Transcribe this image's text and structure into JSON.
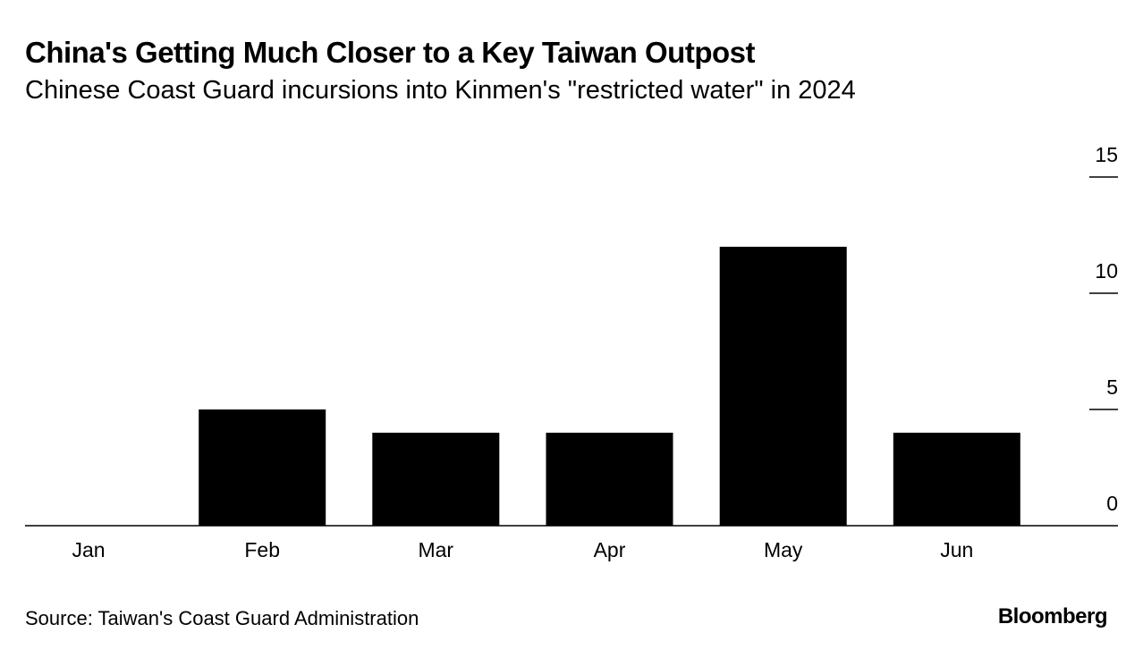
{
  "header": {
    "title": "China's Getting Much Closer to a Key Taiwan Outpost",
    "subtitle": "Chinese Coast Guard incursions into Kinmen's \"restricted water\" in 2024"
  },
  "footer": {
    "source": "Source: Taiwan's Coast Guard Administration",
    "brand": "Bloomberg"
  },
  "colors": {
    "bar": "#000000",
    "axis": "#000000",
    "background": "#ffffff"
  },
  "chart_data": {
    "type": "bar",
    "title": "China's Getting Much Closer to a Key Taiwan Outpost",
    "subtitle": "Chinese Coast Guard incursions into Kinmen's \"restricted water\" in 2024",
    "xlabel": "",
    "ylabel": "",
    "categories": [
      "Jan",
      "Feb",
      "Mar",
      "Apr",
      "May",
      "Jun"
    ],
    "values": [
      0,
      5,
      4,
      4,
      12,
      4
    ],
    "ylim": [
      0,
      15
    ],
    "yticks": [
      0,
      5,
      10,
      15
    ],
    "y_axis_position": "right",
    "grid": false,
    "legend": "none"
  }
}
